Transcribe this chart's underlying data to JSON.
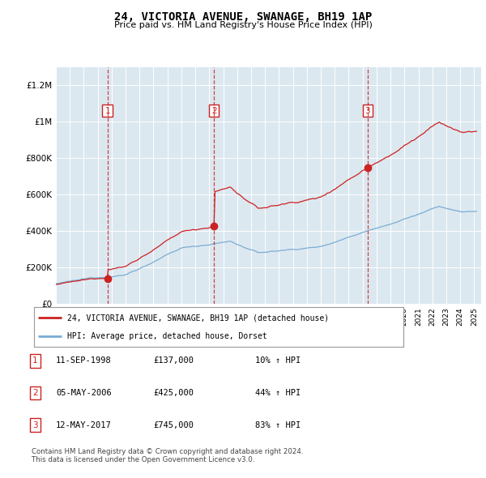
{
  "title": "24, VICTORIA AVENUE, SWANAGE, BH19 1AP",
  "subtitle": "Price paid vs. HM Land Registry's House Price Index (HPI)",
  "plot_bg_color": "#dce8f0",
  "hpi_color": "#7aadd4",
  "price_color": "#cc2222",
  "ylim": [
    0,
    1300000
  ],
  "yticks": [
    0,
    200000,
    400000,
    600000,
    800000,
    1000000,
    1200000
  ],
  "ytick_labels": [
    "£0",
    "£200K",
    "£400K",
    "£600K",
    "£800K",
    "£1M",
    "£1.2M"
  ],
  "xmin": 1995,
  "xmax": 2025.5,
  "purchases": [
    {
      "date": 1998.7,
      "price": 137000,
      "label": "1"
    },
    {
      "date": 2006.34,
      "price": 425000,
      "label": "2"
    },
    {
      "date": 2017.36,
      "price": 745000,
      "label": "3"
    }
  ],
  "vlines": [
    1998.7,
    2006.34,
    2017.36
  ],
  "legend_line1": "24, VICTORIA AVENUE, SWANAGE, BH19 1AP (detached house)",
  "legend_line2": "HPI: Average price, detached house, Dorset",
  "table_entries": [
    {
      "num": "1",
      "date": "11-SEP-1998",
      "price": "£137,000",
      "change": "10% ↑ HPI"
    },
    {
      "num": "2",
      "date": "05-MAY-2006",
      "price": "£425,000",
      "change": "44% ↑ HPI"
    },
    {
      "num": "3",
      "date": "12-MAY-2017",
      "price": "£745,000",
      "change": "83% ↑ HPI"
    }
  ],
  "footnote1": "Contains HM Land Registry data © Crown copyright and database right 2024.",
  "footnote2": "This data is licensed under the Open Government Licence v3.0."
}
